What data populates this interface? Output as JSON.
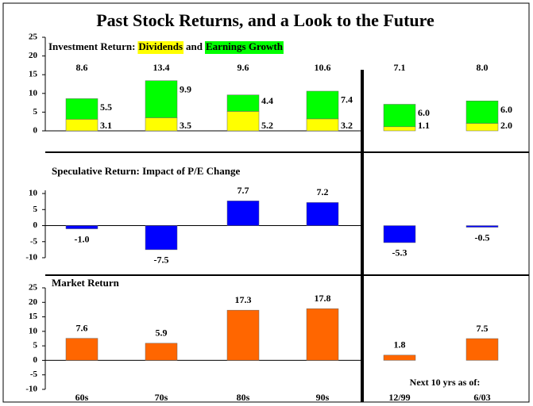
{
  "title": "Past Stock Returns, and a Look to the Future",
  "annotation": "Next 10 yrs as of:",
  "chart_data": [
    {
      "type": "stacked_bar",
      "title": "Investment Return:",
      "connector": "and",
      "ylim": [
        0,
        25
      ],
      "yticks": [
        0,
        5,
        10,
        15,
        20,
        25
      ],
      "totals": [
        8.6,
        13.4,
        9.6,
        10.6,
        7.1,
        8
      ],
      "total_labels": [
        "8.6",
        "13.4",
        "9.6",
        "10.6",
        "7.1",
        "8.0"
      ],
      "series": [
        {
          "name": "Dividends",
          "color": "#ffff00",
          "values": [
            3.1,
            3.5,
            5.2,
            3.2,
            1.1,
            2
          ],
          "value_labels": [
            "3.1",
            "3.5",
            "5.2",
            "3.2",
            "1.1",
            "2.0"
          ]
        },
        {
          "name": "Earnings Growth",
          "color": "#00ff00",
          "values": [
            5.5,
            9.9,
            4.4,
            7.4,
            6,
            6
          ],
          "value_labels": [
            "5.5",
            "9.9",
            "4.4",
            "7.4",
            "6.0",
            "6.0"
          ]
        }
      ]
    },
    {
      "type": "bar",
      "title": "Speculative Return: Impact of P/E Change",
      "color": "#0000ff",
      "ylim": [
        -10,
        11
      ],
      "yticks": [
        -10,
        -5,
        0,
        5,
        10
      ],
      "values": [
        -1,
        -7.5,
        7.7,
        7.2,
        -5.3,
        -0.5
      ],
      "value_labels": [
        "-1.0",
        "-7.5",
        "7.7",
        "7.2",
        "-5.3",
        "-0.5"
      ]
    },
    {
      "type": "bar",
      "title": "Market Return",
      "color": "#ff6600",
      "ylim": [
        -10,
        25
      ],
      "yticks": [
        -10,
        -5,
        0,
        5,
        10,
        15,
        20,
        25
      ],
      "categories": [
        "60s",
        "70s",
        "80s",
        "90s",
        "12/99",
        "6/03"
      ],
      "values": [
        7.6,
        5.9,
        17.3,
        17.8,
        1.8,
        7.5
      ]
    }
  ]
}
